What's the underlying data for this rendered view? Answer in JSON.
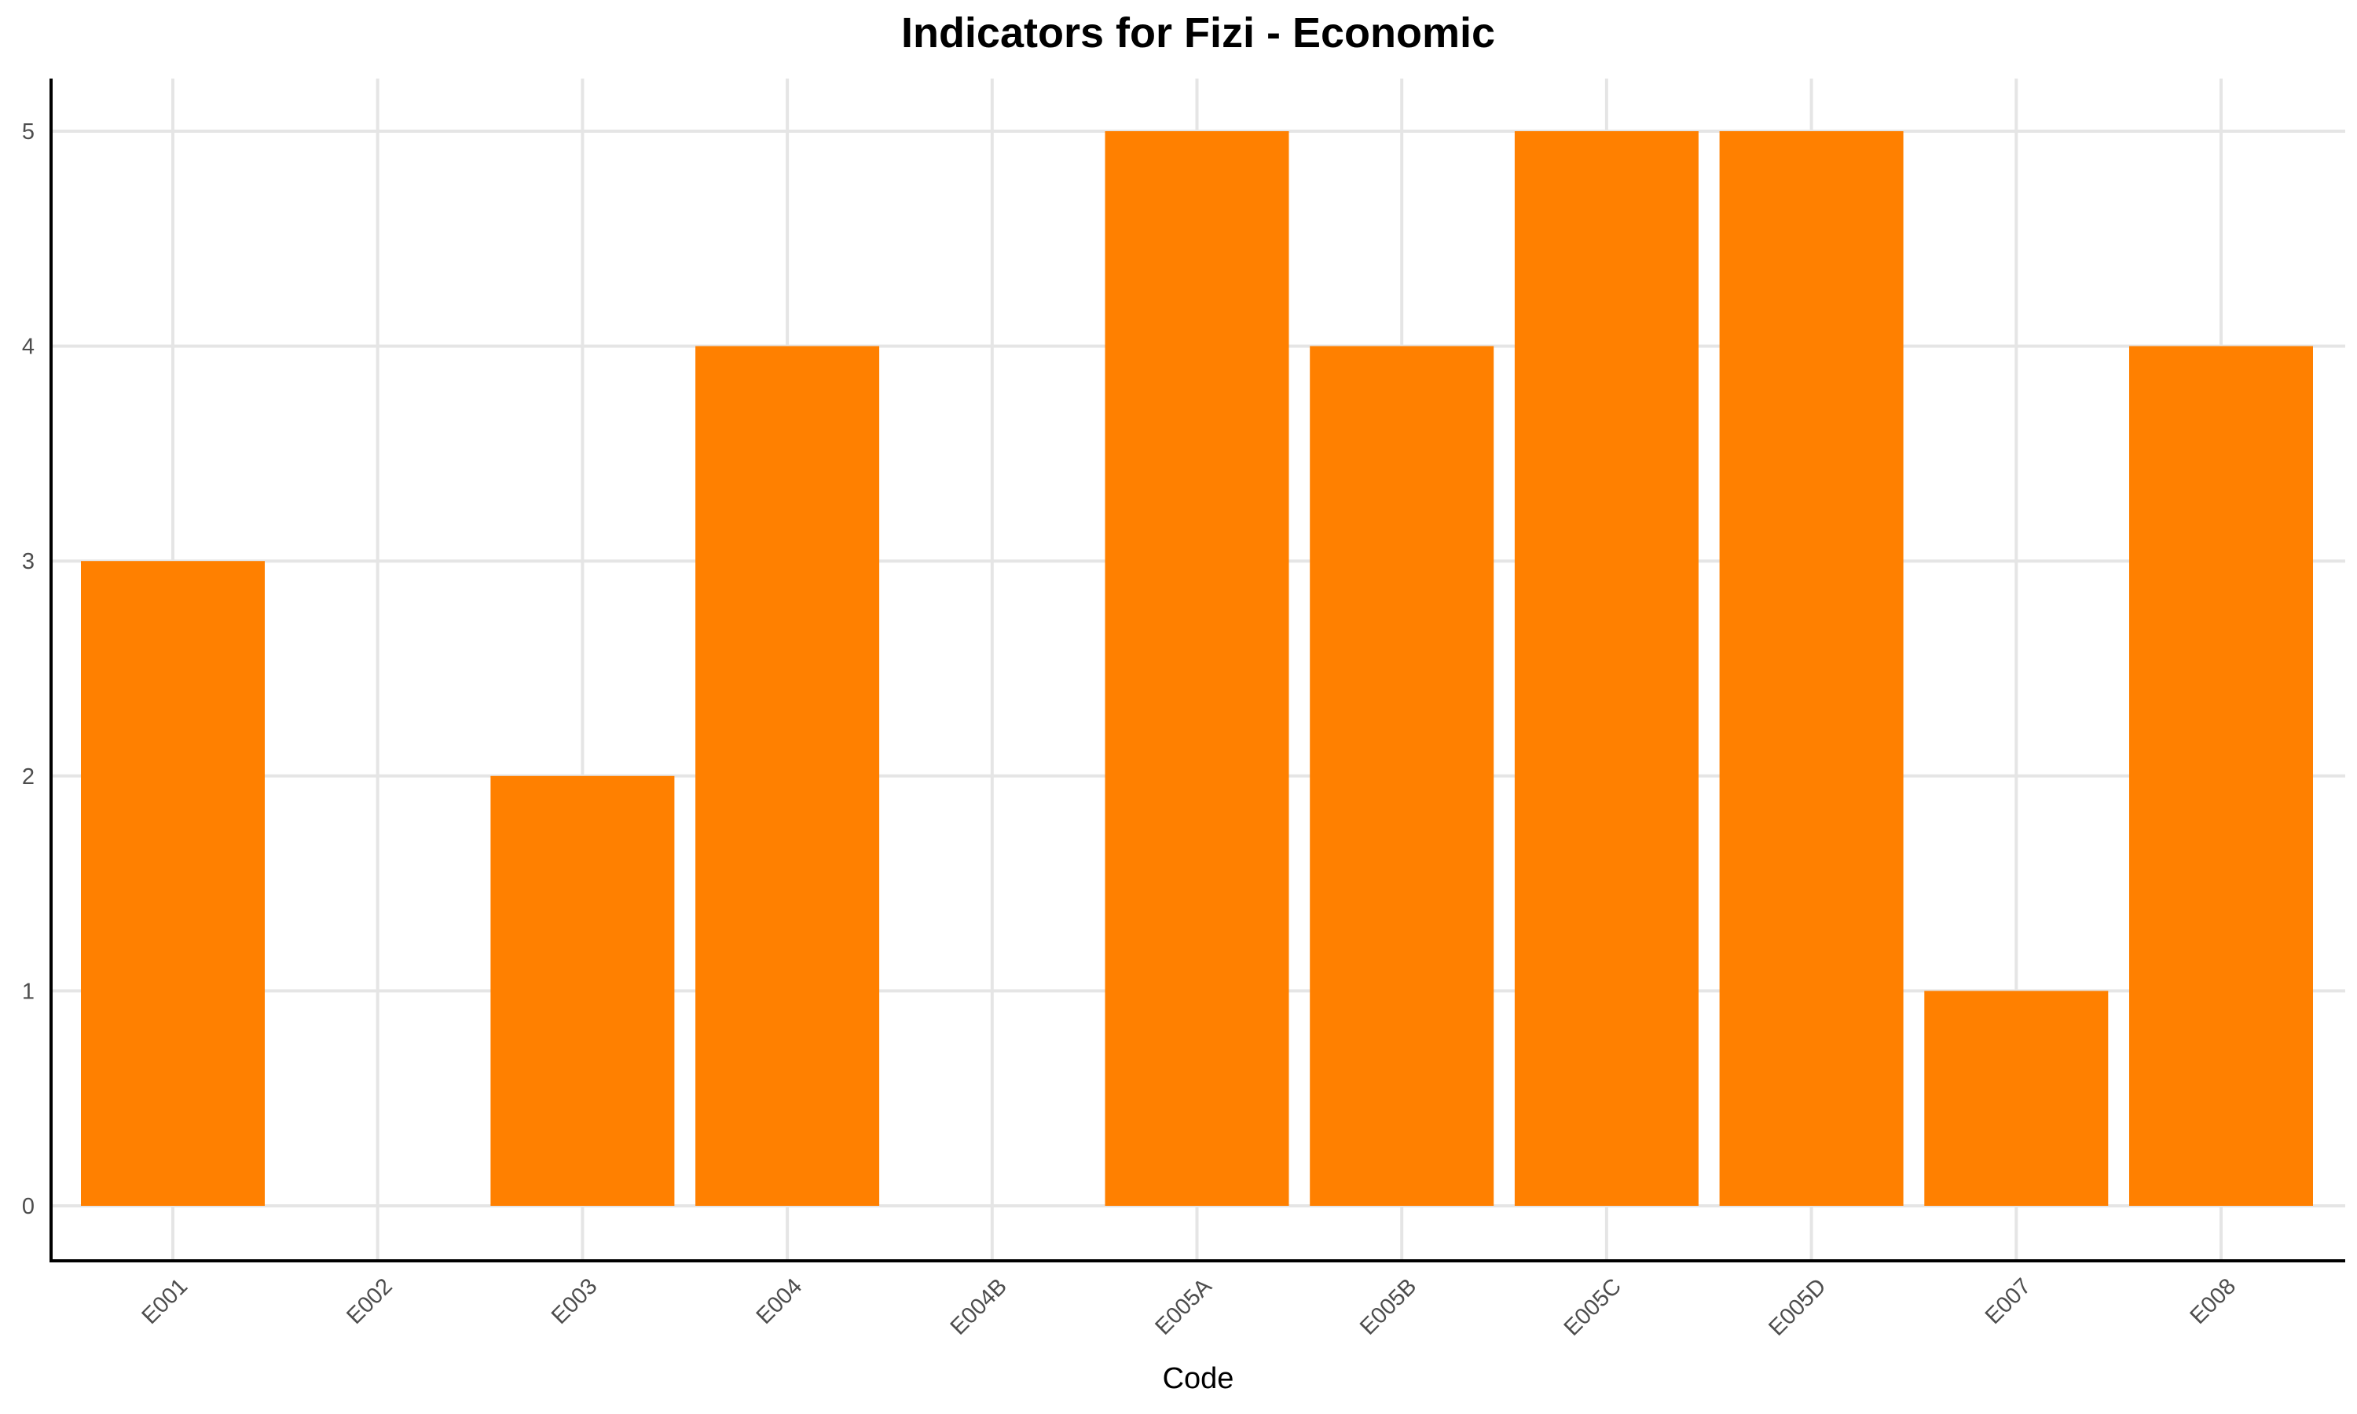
{
  "chart_data": {
    "type": "bar",
    "title": "Indicators for Fizi - Economic",
    "xlabel": "Code",
    "ylabel": "",
    "categories": [
      "E001",
      "E002",
      "E003",
      "E004",
      "E004B",
      "E005A",
      "E005B",
      "E005C",
      "E005D",
      "E007",
      "E008"
    ],
    "values": [
      3,
      0,
      2,
      4,
      0,
      5,
      4,
      5,
      5,
      1,
      4
    ],
    "ylim": [
      0,
      5
    ],
    "yticks": [
      0,
      1,
      2,
      3,
      4,
      5
    ],
    "bar_color": "#FF8000",
    "grid": true,
    "legend": "none"
  }
}
